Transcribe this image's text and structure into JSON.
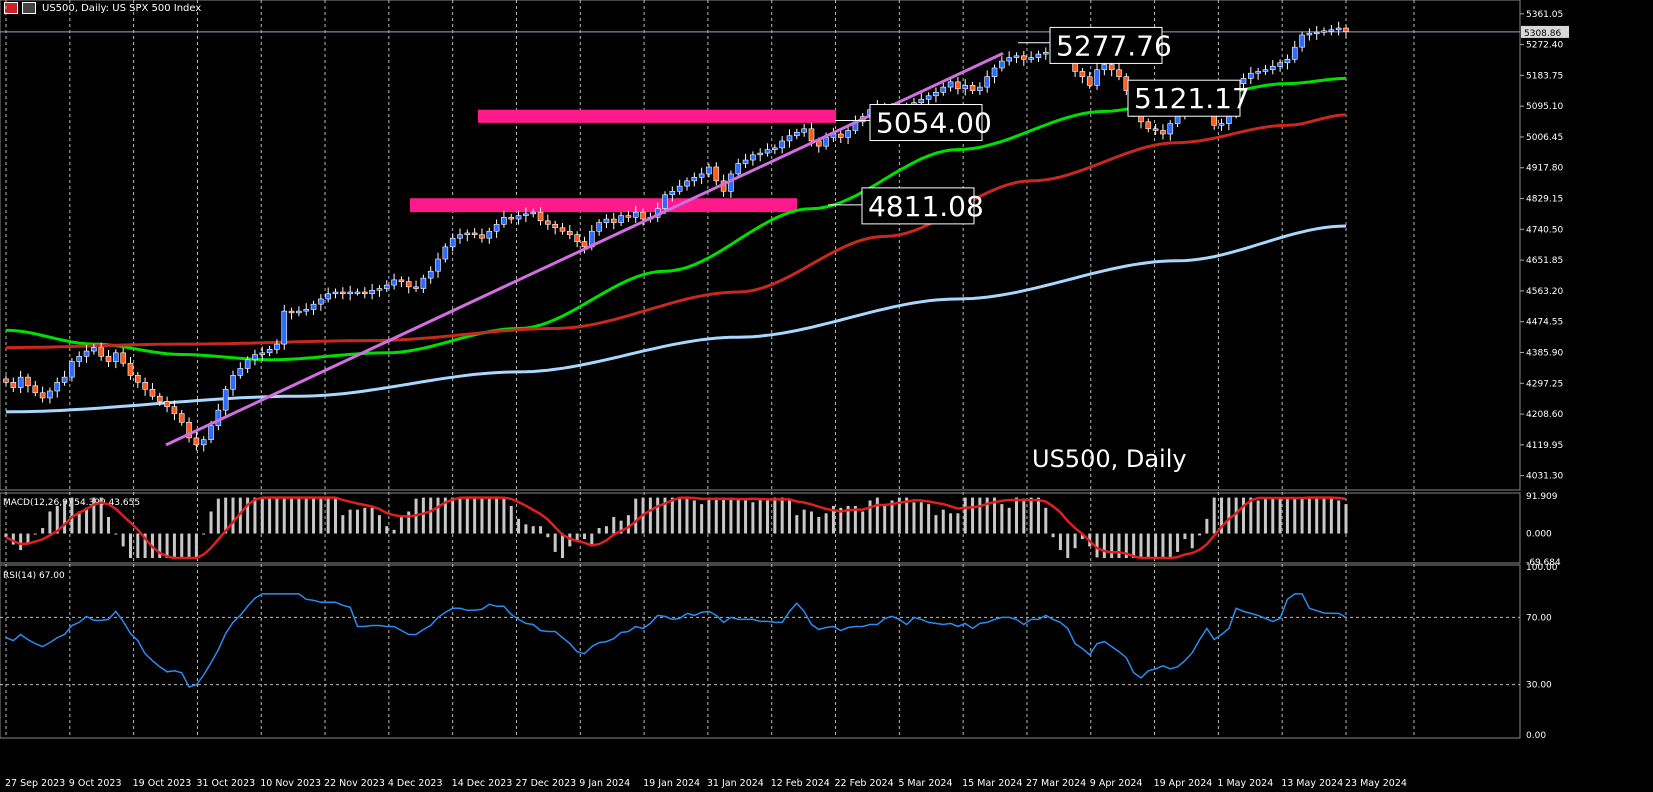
{
  "header": {
    "symbol": "US500, Daily:",
    "description": "US SPX 500 Index",
    "window_icon": "chart-window-icon",
    "period_icon": "candles-icon"
  },
  "watermark": "US500, Daily",
  "chart_data": [
    {
      "type": "candlestick",
      "name": "price",
      "ylim": [
        3990,
        5395
      ],
      "y_ticks": [
        "5361.05",
        "5272.40",
        "5183.75",
        "5095.10",
        "5006.45",
        "4917.80",
        "4829.15",
        "4740.50",
        "4651.85",
        "4563.20",
        "4474.55",
        "4385.90",
        "4297.25",
        "4208.60",
        "4119.95",
        "4031.30"
      ],
      "x_ticks": [
        "27 Sep 2023",
        "9 Oct 2023",
        "19 Oct 2023",
        "31 Oct 2023",
        "10 Nov 2023",
        "22 Nov 2023",
        "4 Dec 2023",
        "14 Dec 2023",
        "27 Dec 2023",
        "9 Jan 2024",
        "19 Jan 2024",
        "31 Jan 2024",
        "12 Feb 2024",
        "22 Feb 2024",
        "5 Mar 2024",
        "15 Mar 2024",
        "27 Mar 2024",
        "9 Apr 2024",
        "19 Apr 2024",
        "1 May 2024",
        "13 May 2024",
        "23 May 2024"
      ],
      "current_price": "5308.86",
      "closes": [
        4300,
        4285,
        4315,
        4290,
        4270,
        4255,
        4275,
        4300,
        4315,
        4360,
        4375,
        4390,
        4400,
        4375,
        4360,
        4385,
        4355,
        4320,
        4300,
        4280,
        4260,
        4245,
        4230,
        4210,
        4185,
        4140,
        4120,
        4135,
        4175,
        4220,
        4280,
        4320,
        4340,
        4365,
        4380,
        4385,
        4395,
        4410,
        4505,
        4500,
        4505,
        4510,
        4525,
        4540,
        4555,
        4560,
        4555,
        4560,
        4560,
        4555,
        4565,
        4570,
        4580,
        4595,
        4590,
        4575,
        4570,
        4600,
        4620,
        4655,
        4690,
        4715,
        4725,
        4730,
        4725,
        4715,
        4735,
        4755,
        4775,
        4770,
        4780,
        4785,
        4790,
        4765,
        4755,
        4745,
        4735,
        4725,
        4705,
        4690,
        4735,
        4760,
        4770,
        4760,
        4780,
        4775,
        4790,
        4770,
        4775,
        4800,
        4840,
        4850,
        4865,
        4880,
        4890,
        4900,
        4920,
        4880,
        4850,
        4900,
        4930,
        4940,
        4955,
        4960,
        4970,
        4975,
        4995,
        5010,
        5020,
        5030,
        4995,
        4980,
        5005,
        5015,
        5005,
        5025,
        5050,
        5065,
        5085,
        5095,
        5090,
        5085,
        5095,
        5080,
        5105,
        5115,
        5125,
        5135,
        5150,
        5165,
        5145,
        5155,
        5140,
        5150,
        5180,
        5205,
        5225,
        5235,
        5240,
        5230,
        5235,
        5245,
        5250,
        5240,
        5255,
        5250,
        5195,
        5180,
        5155,
        5200,
        5215,
        5200,
        5180,
        5140,
        5080,
        5050,
        5030,
        5025,
        5015,
        5045,
        5070,
        5085,
        5105,
        5130,
        5125,
        5040,
        5045,
        5070,
        5160,
        5175,
        5190,
        5195,
        5200,
        5210,
        5220,
        5230,
        5265,
        5300,
        5305,
        5308,
        5312,
        5315,
        5320,
        5310
      ],
      "annotations": [
        "5277.76",
        "5054.00",
        "5121.17",
        "4811.08"
      ],
      "zones": [
        [
          5047,
          5085
        ],
        [
          4790,
          4830
        ]
      ],
      "trendline": [
        [
          4120,
          0
        ],
        [
          5247,
          1
        ]
      ],
      "moving_averages": [
        {
          "color": "#00e000",
          "ref": "MA-green"
        },
        {
          "color": "#c8281e",
          "ref": "MA-red"
        },
        {
          "color": "#a8d8ff",
          "ref": "MA-lightblue"
        }
      ]
    },
    {
      "type": "bar",
      "name": "macd",
      "label": "MACD(12,26,9) 54.399 43.655",
      "ylim": [
        -69.684,
        91.909
      ],
      "y_ticks": [
        "91.909",
        "0.000",
        "-69.684"
      ],
      "signal_color": "#e02020",
      "hist_color": "#c8c8c8"
    },
    {
      "type": "line",
      "name": "rsi",
      "label": "RSI(14) 67.00",
      "ylim": [
        0,
        100
      ],
      "y_ticks": [
        "100.00",
        "70.00",
        "30.00",
        "0.00"
      ],
      "color": "#2a8cf0"
    }
  ]
}
